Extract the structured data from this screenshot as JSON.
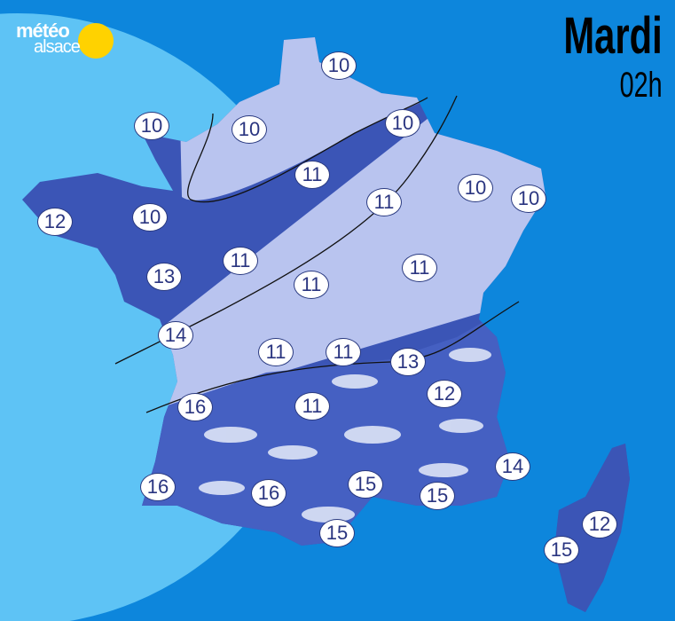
{
  "logo": {
    "line1": "météo",
    "line2": "alsace"
  },
  "header": {
    "day": "Mardi",
    "hour": "02h"
  },
  "colors": {
    "sea": "#0d86dc",
    "atlantic": "#5ec3f5",
    "pale_zone": "#b9c4ef",
    "clear_zone": "#3b55b6",
    "cloudy_zone": "#4560c2"
  },
  "temperatures": [
    "10",
    "10",
    "10",
    "10",
    "11",
    "10",
    "10",
    "12",
    "10",
    "11",
    "11",
    "13",
    "11",
    "11",
    "14",
    "11",
    "11",
    "13",
    "12",
    "16",
    "11",
    "16",
    "16",
    "15",
    "14",
    "15",
    "15",
    "12",
    "15"
  ]
}
